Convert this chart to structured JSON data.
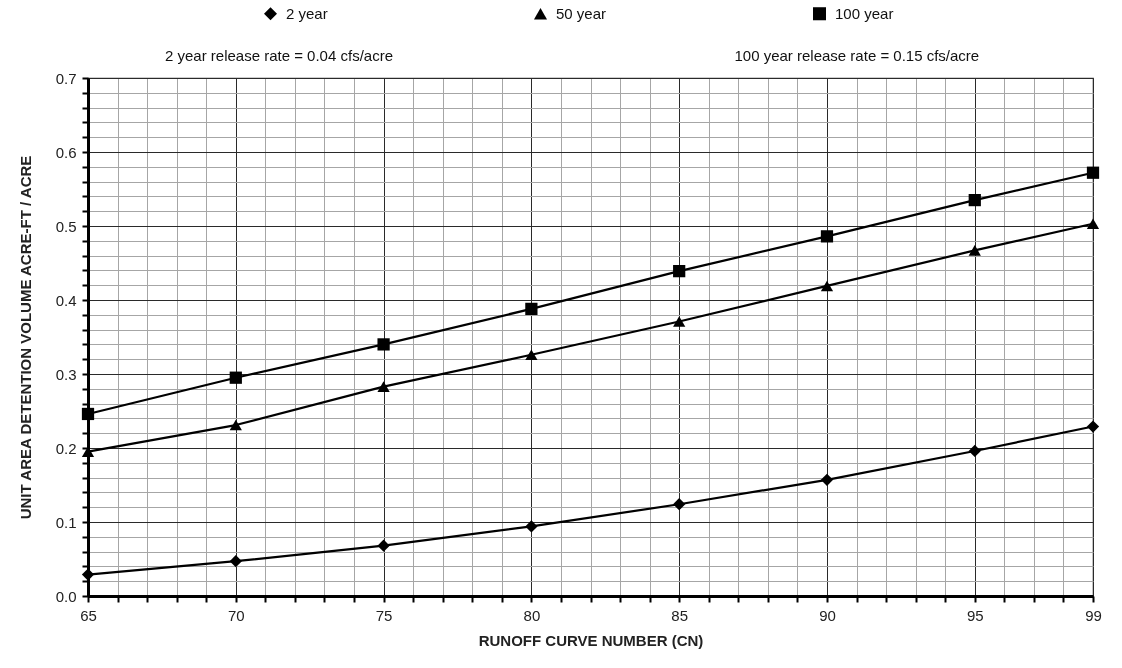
{
  "chart_data": {
    "type": "line",
    "xlabel": "RUNOFF CURVE NUMBER (CN)",
    "ylabel": "UNIT AREA DETENTION VOLUME    ACRE-FT / ACRE",
    "annotations": [
      "2 year release rate = 0.04 cfs/acre",
      "100 year release rate = 0.15 cfs/acre"
    ],
    "x": [
      65,
      70,
      75,
      80,
      85,
      90,
      95,
      99
    ],
    "series": [
      {
        "name": "2 year",
        "color": "#000000",
        "marker": "diamond",
        "values": [
          0.029,
          0.047,
          0.068,
          0.094,
          0.124,
          0.157,
          0.196,
          0.229
        ]
      },
      {
        "name": "50 year",
        "color": "#000000",
        "marker": "triangle",
        "values": [
          0.195,
          0.231,
          0.283,
          0.326,
          0.371,
          0.419,
          0.467,
          0.503
        ]
      },
      {
        "name": "100 year",
        "color": "#000000",
        "marker": "square",
        "values": [
          0.246,
          0.295,
          0.34,
          0.388,
          0.439,
          0.486,
          0.535,
          0.572
        ]
      }
    ],
    "xlim": [
      65,
      99
    ],
    "ylim": [
      0,
      0.7
    ],
    "xticks": [
      65,
      {
        "value": 66,
        "label": null
      },
      {
        "value": 67,
        "label": null
      },
      {
        "value": 68,
        "label": null
      },
      {
        "value": 69,
        "label": null
      },
      70,
      {
        "value": 71,
        "label": null
      },
      {
        "value": 72,
        "label": null
      },
      {
        "value": 73,
        "label": null
      },
      {
        "value": 74,
        "label": null
      },
      75,
      {
        "value": 76,
        "label": null
      },
      {
        "value": 77,
        "label": null
      },
      {
        "value": 78,
        "label": null
      },
      {
        "value": 79,
        "label": null
      },
      80,
      {
        "value": 81,
        "label": null
      },
      {
        "value": 82,
        "label": null
      },
      {
        "value": 83,
        "label": null
      },
      {
        "value": 84,
        "label": null
      },
      85,
      {
        "value": 86,
        "label": null
      },
      {
        "value": 87,
        "label": null
      },
      {
        "value": 88,
        "label": null
      },
      {
        "value": 89,
        "label": null
      },
      90,
      {
        "value": 91,
        "label": null
      },
      {
        "value": 92,
        "label": null
      },
      {
        "value": 93,
        "label": null
      },
      {
        "value": 94,
        "label": null
      },
      95,
      {
        "value": 96,
        "label": null
      },
      {
        "value": 97,
        "label": null
      },
      {
        "value": 98,
        "label": null
      },
      99
    ],
    "yticks": [
      {
        "value": 0,
        "label": "0.0"
      },
      {
        "value": 0.02,
        "label": null
      },
      {
        "value": 0.04,
        "label": null
      },
      {
        "value": 0.06,
        "label": null
      },
      {
        "value": 0.08,
        "label": null
      },
      0.1,
      {
        "value": 0.12,
        "label": null
      },
      {
        "value": 0.14,
        "label": null
      },
      {
        "value": 0.16,
        "label": null
      },
      {
        "value": 0.18,
        "label": null
      },
      0.2,
      {
        "value": 0.22,
        "label": null
      },
      {
        "value": 0.24,
        "label": null
      },
      {
        "value": 0.26,
        "label": null
      },
      {
        "value": 0.28,
        "label": null
      },
      0.3,
      {
        "value": 0.32,
        "label": null
      },
      {
        "value": 0.34,
        "label": null
      },
      {
        "value": 0.36,
        "label": null
      },
      {
        "value": 0.38,
        "label": null
      },
      0.4,
      {
        "value": 0.42,
        "label": null
      },
      {
        "value": 0.44,
        "label": null
      },
      {
        "value": 0.46,
        "label": null
      },
      {
        "value": 0.48,
        "label": null
      },
      0.5,
      {
        "value": 0.52,
        "label": null
      },
      {
        "value": 0.54,
        "label": null
      },
      {
        "value": 0.56,
        "label": null
      },
      {
        "value": 0.58,
        "label": null
      },
      0.6,
      {
        "value": 0.62,
        "label": null
      },
      {
        "value": 0.64,
        "label": null
      },
      {
        "value": 0.66,
        "label": null
      },
      {
        "value": 0.68,
        "label": null
      },
      0.7
    ],
    "grid": true,
    "legend": "top",
    "line_style": "solid"
  }
}
